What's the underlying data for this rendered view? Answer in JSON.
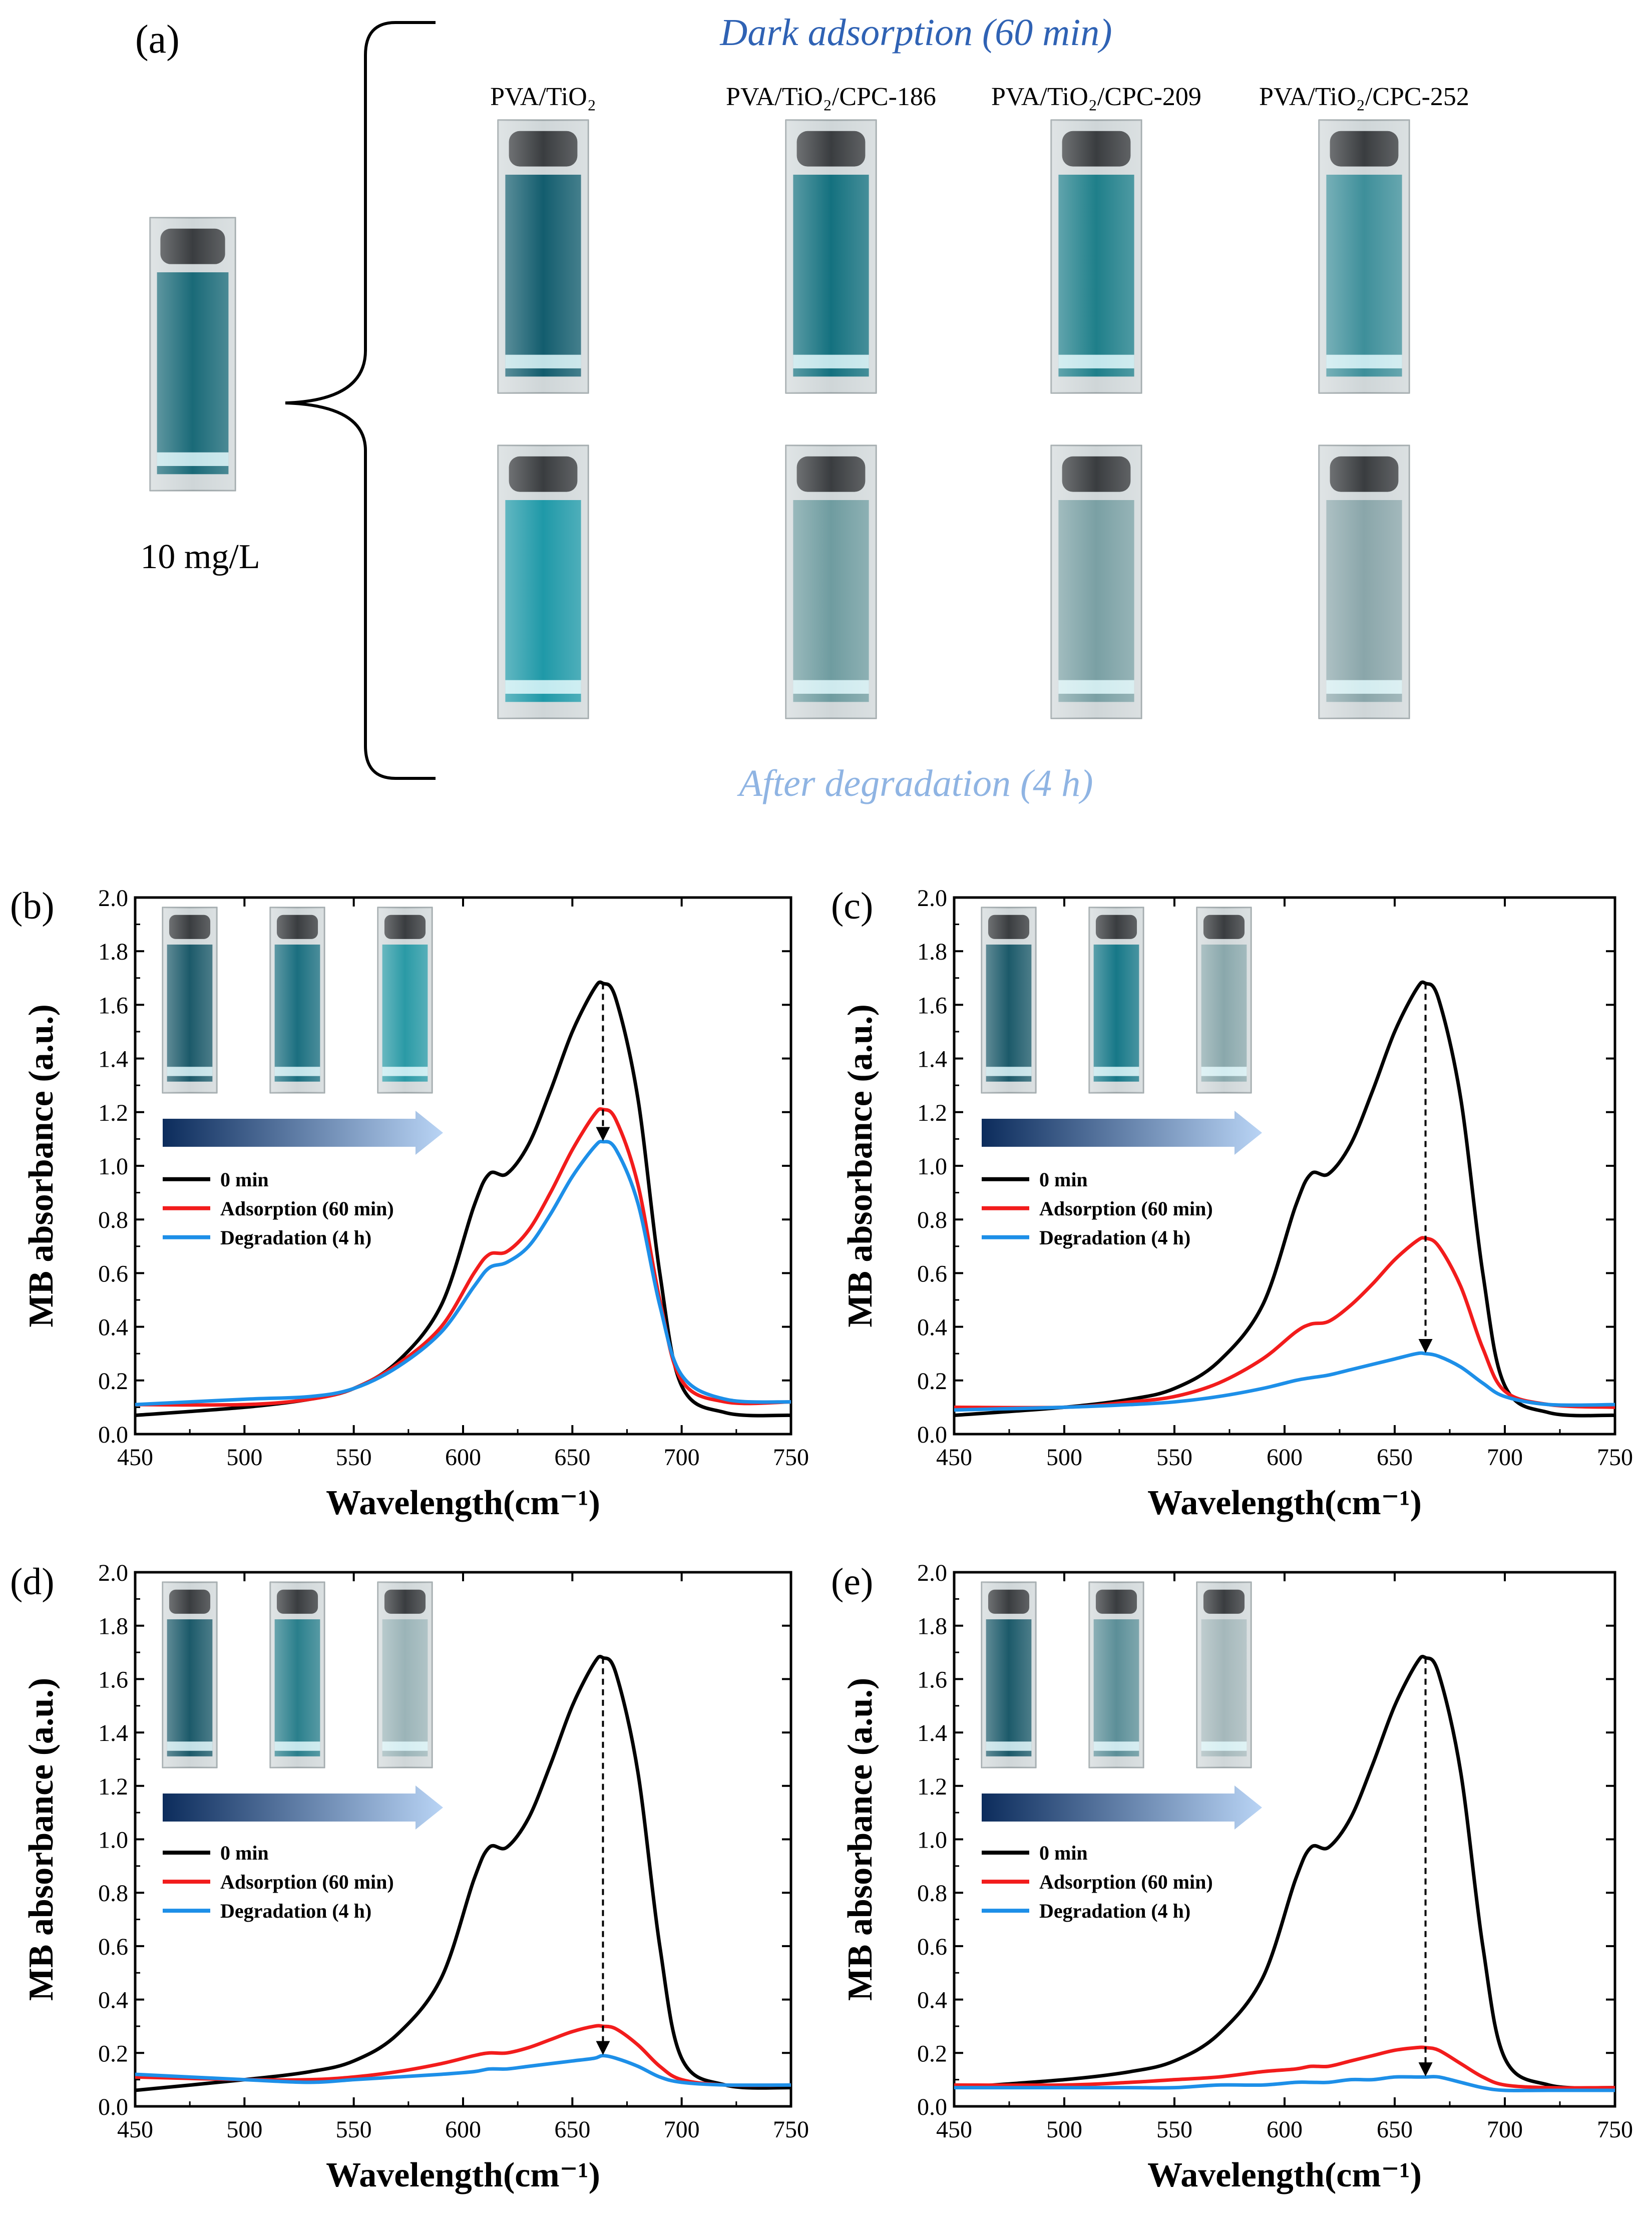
{
  "panel_a": {
    "label": "(a)",
    "stock_label": "10 mg/L",
    "top_caption": "Dark adsorption (60 min)",
    "bottom_caption": "After degradation  (4 h)",
    "sample_labels": [
      "PVA/TiO₂",
      "PVA/TiO₂/CPC-186",
      "PVA/TiO₂/CPC-209",
      "PVA/TiO₂/CPC-252"
    ],
    "colors": {
      "top_caption": "#2f62b4",
      "bottom_caption": "#8fb4e3"
    },
    "cuvettes": {
      "stock": "#1a6a78",
      "dark": [
        "#135d6e",
        "#14717f",
        "#1f7f8a",
        "#3e8f9a"
      ],
      "after": [
        "#1f99a8",
        "#6f9ca0",
        "#7aa0a4",
        "#8aa6aa"
      ]
    }
  },
  "legend_labels": [
    "0 min",
    "Adsorption (60 min)",
    "Degradation (4 h)"
  ],
  "colors": {
    "series_0": "#000000",
    "series_1": "#f21c1c",
    "series_2": "#1d8fe8",
    "arrow_start": "#0c2c5c",
    "arrow_end": "#b9d4f5"
  },
  "chart_data": [
    {
      "panel": "(b)",
      "type": "line",
      "xlabel": "Wavelength(cm⁻¹)",
      "ylabel": "MB absorbance (a.u.)",
      "xlim": [
        450,
        750
      ],
      "ylim": [
        0,
        2.0
      ],
      "xticks": [
        450,
        500,
        550,
        600,
        650,
        700,
        750
      ],
      "yticks": [
        0.0,
        0.2,
        0.4,
        0.6,
        0.8,
        1.0,
        1.2,
        1.4,
        1.6,
        1.8,
        2.0
      ],
      "inset_cuvettes": [
        "#1c5a6a",
        "#1b6f80",
        "#2a9aa6"
      ],
      "series": [
        {
          "name": "0 min",
          "x": [
            450,
            500,
            530,
            550,
            570,
            590,
            605,
            612,
            620,
            630,
            640,
            650,
            660,
            664,
            670,
            680,
            690,
            700,
            720,
            750
          ],
          "y": [
            0.07,
            0.1,
            0.13,
            0.17,
            0.27,
            0.48,
            0.85,
            0.97,
            0.97,
            1.08,
            1.28,
            1.5,
            1.66,
            1.68,
            1.62,
            1.25,
            0.6,
            0.18,
            0.08,
            0.07
          ]
        },
        {
          "name": "Adsorption (60 min)",
          "x": [
            450,
            500,
            530,
            550,
            570,
            590,
            605,
            612,
            620,
            630,
            640,
            650,
            660,
            664,
            670,
            680,
            690,
            700,
            720,
            750
          ],
          "y": [
            0.11,
            0.11,
            0.13,
            0.17,
            0.26,
            0.4,
            0.6,
            0.67,
            0.68,
            0.76,
            0.9,
            1.06,
            1.19,
            1.21,
            1.17,
            0.93,
            0.5,
            0.2,
            0.12,
            0.12
          ]
        },
        {
          "name": "Degradation (4 h)",
          "x": [
            450,
            500,
            530,
            550,
            570,
            590,
            605,
            612,
            620,
            630,
            640,
            650,
            660,
            664,
            670,
            680,
            690,
            700,
            720,
            750
          ],
          "y": [
            0.11,
            0.13,
            0.14,
            0.17,
            0.25,
            0.38,
            0.55,
            0.62,
            0.64,
            0.7,
            0.82,
            0.96,
            1.07,
            1.09,
            1.06,
            0.86,
            0.48,
            0.22,
            0.13,
            0.12
          ]
        }
      ]
    },
    {
      "panel": "(c)",
      "type": "line",
      "xlabel": "Wavelength(cm⁻¹)",
      "ylabel": "MB absorbance (a.u.)",
      "xlim": [
        450,
        750
      ],
      "ylim": [
        0,
        2.0
      ],
      "xticks": [
        450,
        500,
        550,
        600,
        650,
        700,
        750
      ],
      "yticks": [
        0.0,
        0.2,
        0.4,
        0.6,
        0.8,
        1.0,
        1.2,
        1.4,
        1.6,
        1.8,
        2.0
      ],
      "inset_cuvettes": [
        "#1c5a6a",
        "#177888",
        "#8aa8ac"
      ],
      "series": [
        {
          "name": "0 min",
          "x": [
            450,
            500,
            530,
            550,
            570,
            590,
            605,
            612,
            620,
            630,
            640,
            650,
            660,
            664,
            670,
            680,
            690,
            700,
            720,
            750
          ],
          "y": [
            0.07,
            0.1,
            0.13,
            0.17,
            0.27,
            0.48,
            0.85,
            0.97,
            0.97,
            1.08,
            1.28,
            1.5,
            1.66,
            1.68,
            1.62,
            1.25,
            0.6,
            0.18,
            0.08,
            0.07
          ]
        },
        {
          "name": "Adsorption (60 min)",
          "x": [
            450,
            500,
            530,
            550,
            570,
            590,
            605,
            612,
            620,
            630,
            640,
            650,
            660,
            664,
            670,
            680,
            690,
            700,
            720,
            750
          ],
          "y": [
            0.1,
            0.1,
            0.12,
            0.14,
            0.19,
            0.28,
            0.38,
            0.41,
            0.42,
            0.48,
            0.56,
            0.65,
            0.72,
            0.73,
            0.7,
            0.55,
            0.32,
            0.16,
            0.11,
            0.1
          ]
        },
        {
          "name": "Degradation (4 h)",
          "x": [
            450,
            500,
            530,
            550,
            570,
            590,
            605,
            612,
            620,
            630,
            640,
            650,
            660,
            664,
            670,
            680,
            690,
            700,
            720,
            750
          ],
          "y": [
            0.09,
            0.1,
            0.11,
            0.12,
            0.14,
            0.17,
            0.2,
            0.21,
            0.22,
            0.24,
            0.26,
            0.28,
            0.3,
            0.3,
            0.29,
            0.25,
            0.19,
            0.14,
            0.11,
            0.11
          ]
        }
      ]
    },
    {
      "panel": "(d)",
      "type": "line",
      "xlabel": "Wavelength(cm⁻¹)",
      "ylabel": "MB absorbance (a.u.)",
      "xlim": [
        450,
        750
      ],
      "ylim": [
        0,
        2.0
      ],
      "xticks": [
        450,
        500,
        550,
        600,
        650,
        700,
        750
      ],
      "yticks": [
        0.0,
        0.2,
        0.4,
        0.6,
        0.8,
        1.0,
        1.2,
        1.4,
        1.6,
        1.8,
        2.0
      ],
      "inset_cuvettes": [
        "#1c5a6a",
        "#2a7f8c",
        "#9bb4b8"
      ],
      "series": [
        {
          "name": "0 min",
          "x": [
            450,
            500,
            530,
            550,
            570,
            590,
            605,
            612,
            620,
            630,
            640,
            650,
            660,
            664,
            670,
            680,
            690,
            700,
            720,
            750
          ],
          "y": [
            0.06,
            0.1,
            0.13,
            0.17,
            0.27,
            0.48,
            0.85,
            0.97,
            0.97,
            1.08,
            1.28,
            1.5,
            1.66,
            1.68,
            1.62,
            1.25,
            0.6,
            0.18,
            0.08,
            0.07
          ]
        },
        {
          "name": "Adsorption (60 min)",
          "x": [
            450,
            500,
            530,
            550,
            570,
            590,
            605,
            612,
            620,
            630,
            640,
            650,
            660,
            664,
            670,
            680,
            690,
            700,
            720,
            750
          ],
          "y": [
            0.11,
            0.1,
            0.1,
            0.11,
            0.13,
            0.16,
            0.19,
            0.2,
            0.2,
            0.22,
            0.25,
            0.28,
            0.3,
            0.3,
            0.29,
            0.23,
            0.15,
            0.1,
            0.08,
            0.08
          ]
        },
        {
          "name": "Degradation (4 h)",
          "x": [
            450,
            500,
            530,
            550,
            570,
            590,
            605,
            612,
            620,
            630,
            640,
            650,
            660,
            664,
            670,
            680,
            690,
            700,
            720,
            750
          ],
          "y": [
            0.12,
            0.1,
            0.09,
            0.1,
            0.11,
            0.12,
            0.13,
            0.14,
            0.14,
            0.15,
            0.16,
            0.17,
            0.18,
            0.19,
            0.18,
            0.15,
            0.11,
            0.09,
            0.08,
            0.08
          ]
        }
      ]
    },
    {
      "panel": "(e)",
      "type": "line",
      "xlabel": "Wavelength(cm⁻¹)",
      "ylabel": "MB absorbance (a.u.)",
      "xlim": [
        450,
        750
      ],
      "ylim": [
        0,
        2.0
      ],
      "xticks": [
        450,
        500,
        550,
        600,
        650,
        700,
        750
      ],
      "yticks": [
        0.0,
        0.2,
        0.4,
        0.6,
        0.8,
        1.0,
        1.2,
        1.4,
        1.6,
        1.8,
        2.0
      ],
      "inset_cuvettes": [
        "#1c5a6a",
        "#5c8f98",
        "#a5b8bb"
      ],
      "series": [
        {
          "name": "0 min",
          "x": [
            450,
            500,
            530,
            550,
            570,
            590,
            605,
            612,
            620,
            630,
            640,
            650,
            660,
            664,
            670,
            680,
            690,
            700,
            720,
            750
          ],
          "y": [
            0.07,
            0.1,
            0.13,
            0.17,
            0.27,
            0.48,
            0.85,
            0.97,
            0.97,
            1.08,
            1.28,
            1.5,
            1.66,
            1.68,
            1.62,
            1.25,
            0.6,
            0.18,
            0.08,
            0.07
          ]
        },
        {
          "name": "Adsorption (60 min)",
          "x": [
            450,
            500,
            530,
            550,
            570,
            590,
            605,
            612,
            620,
            630,
            640,
            650,
            660,
            664,
            670,
            680,
            690,
            700,
            720,
            750
          ],
          "y": [
            0.08,
            0.08,
            0.09,
            0.1,
            0.11,
            0.13,
            0.14,
            0.15,
            0.15,
            0.17,
            0.19,
            0.21,
            0.22,
            0.22,
            0.21,
            0.16,
            0.11,
            0.08,
            0.07,
            0.07
          ]
        },
        {
          "name": "Degradation (4 h)",
          "x": [
            450,
            500,
            530,
            550,
            570,
            590,
            605,
            612,
            620,
            630,
            640,
            650,
            660,
            664,
            670,
            680,
            690,
            700,
            720,
            750
          ],
          "y": [
            0.07,
            0.07,
            0.07,
            0.07,
            0.08,
            0.08,
            0.09,
            0.09,
            0.09,
            0.1,
            0.1,
            0.11,
            0.11,
            0.11,
            0.11,
            0.09,
            0.07,
            0.06,
            0.06,
            0.06
          ]
        }
      ]
    }
  ]
}
